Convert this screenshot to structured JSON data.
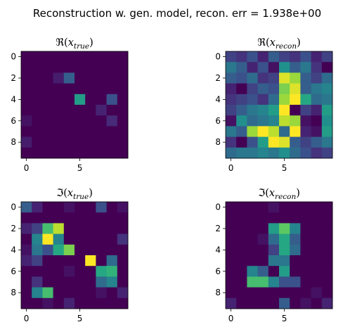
{
  "suptitle": "Reconstruction w. gen. model, recon. err = 1.938e+00",
  "chart_data": [
    {
      "type": "heatmap",
      "title": {
        "sym": "ℜ",
        "var": "x",
        "sub": "true"
      },
      "xticks": [
        0,
        5
      ],
      "yticks": [
        0,
        2,
        4,
        6,
        8
      ],
      "xlim": [
        -0.5,
        9.5
      ],
      "ylim": [
        9.5,
        -0.5
      ],
      "colormap": "viridis",
      "vmin": 0,
      "vmax": 1,
      "values": [
        [
          0.0,
          0.0,
          0.0,
          0.0,
          0.0,
          0.0,
          0.0,
          0.0,
          0.0,
          0.0
        ],
        [
          0.0,
          0.0,
          0.0,
          0.0,
          0.0,
          0.0,
          0.0,
          0.0,
          0.0,
          0.0
        ],
        [
          0.0,
          0.0,
          0.0,
          0.08,
          0.3,
          0.0,
          0.0,
          0.0,
          0.0,
          0.0
        ],
        [
          0.0,
          0.0,
          0.0,
          0.0,
          0.0,
          0.0,
          0.0,
          0.0,
          0.0,
          0.0
        ],
        [
          0.0,
          0.0,
          0.0,
          0.0,
          0.0,
          0.55,
          0.0,
          0.0,
          0.25,
          0.0
        ],
        [
          0.0,
          0.0,
          0.0,
          0.0,
          0.0,
          0.0,
          0.0,
          0.1,
          0.0,
          0.0
        ],
        [
          0.05,
          0.0,
          0.0,
          0.0,
          0.0,
          0.0,
          0.0,
          0.0,
          0.12,
          0.0
        ],
        [
          0.0,
          0.0,
          0.0,
          0.0,
          0.0,
          0.0,
          0.0,
          0.0,
          0.0,
          0.0
        ],
        [
          0.08,
          0.0,
          0.0,
          0.0,
          0.0,
          0.0,
          0.0,
          0.0,
          0.0,
          0.0
        ],
        [
          0.0,
          0.0,
          0.0,
          0.0,
          0.0,
          0.0,
          0.0,
          0.0,
          0.0,
          0.0
        ]
      ]
    },
    {
      "type": "heatmap",
      "title": {
        "sym": "ℜ",
        "var": "x",
        "sub": "recon"
      },
      "xticks": [
        0,
        5
      ],
      "yticks": [
        0,
        2,
        4,
        6,
        8
      ],
      "xlim": [
        -0.5,
        9.5
      ],
      "ylim": [
        9.5,
        -0.5
      ],
      "colormap": "viridis",
      "vmin": 0,
      "vmax": 1,
      "values": [
        [
          0.2,
          0.15,
          0.25,
          0.1,
          0.3,
          0.2,
          0.15,
          0.25,
          0.1,
          0.2
        ],
        [
          0.4,
          0.3,
          0.1,
          0.25,
          0.05,
          0.5,
          0.3,
          0.4,
          0.15,
          0.0
        ],
        [
          0.3,
          0.25,
          0.35,
          0.15,
          0.2,
          0.95,
          0.85,
          0.3,
          0.2,
          0.35
        ],
        [
          0.1,
          0.0,
          0.2,
          0.3,
          0.25,
          0.8,
          0.95,
          0.3,
          0.4,
          0.45
        ],
        [
          0.15,
          0.2,
          0.25,
          0.15,
          0.35,
          0.85,
          1.0,
          0.6,
          0.35,
          0.4
        ],
        [
          0.2,
          0.3,
          0.4,
          0.45,
          0.55,
          1.0,
          0.0,
          0.2,
          0.1,
          0.55
        ],
        [
          0.05,
          0.5,
          0.35,
          0.4,
          0.45,
          0.9,
          0.85,
          0.05,
          0.0,
          0.5
        ],
        [
          0.4,
          0.3,
          0.85,
          1.0,
          0.9,
          0.35,
          1.0,
          0.1,
          0.05,
          0.55
        ],
        [
          0.15,
          0.0,
          0.25,
          0.55,
          1.0,
          0.95,
          0.3,
          0.2,
          0.3,
          0.4
        ],
        [
          0.35,
          0.4,
          0.4,
          0.45,
          0.4,
          0.5,
          0.35,
          0.25,
          0.15,
          0.2
        ]
      ]
    },
    {
      "type": "heatmap",
      "title": {
        "sym": "ℑ",
        "var": "x",
        "sub": "true"
      },
      "xticks": [
        0,
        5
      ],
      "yticks": [
        0,
        2,
        4,
        6,
        8
      ],
      "xlim": [
        -0.5,
        9.5
      ],
      "ylim": [
        9.5,
        -0.5
      ],
      "colormap": "viridis",
      "vmin": 0,
      "vmax": 1,
      "values": [
        [
          0.3,
          0.1,
          0.0,
          0.0,
          0.05,
          0.0,
          0.0,
          0.25,
          0.0,
          0.05
        ],
        [
          0.0,
          0.0,
          0.0,
          0.0,
          0.0,
          0.0,
          0.0,
          0.0,
          0.0,
          0.0
        ],
        [
          0.1,
          0.2,
          0.7,
          0.9,
          0.0,
          0.0,
          0.0,
          0.0,
          0.0,
          0.0
        ],
        [
          0.0,
          0.45,
          1.0,
          0.45,
          0.0,
          0.0,
          0.0,
          0.0,
          0.0,
          0.15
        ],
        [
          0.05,
          0.4,
          0.25,
          0.6,
          0.8,
          0.0,
          0.0,
          0.0,
          0.0,
          0.0
        ],
        [
          0.1,
          0.2,
          0.0,
          0.0,
          0.0,
          0.0,
          1.0,
          0.0,
          0.35,
          0.0
        ],
        [
          0.0,
          0.0,
          0.0,
          0.0,
          0.05,
          0.0,
          0.0,
          0.6,
          0.65,
          0.0
        ],
        [
          0.0,
          0.15,
          0.0,
          0.0,
          0.0,
          0.0,
          0.0,
          0.35,
          0.45,
          0.0
        ],
        [
          0.0,
          0.45,
          0.7,
          0.0,
          0.0,
          0.0,
          0.0,
          0.05,
          0.0,
          0.1
        ],
        [
          0.0,
          0.0,
          0.05,
          0.0,
          0.1,
          0.0,
          0.0,
          0.0,
          0.0,
          0.0
        ]
      ]
    },
    {
      "type": "heatmap",
      "title": {
        "sym": "ℑ",
        "var": "x",
        "sub": "recon"
      },
      "xticks": [
        0,
        5
      ],
      "yticks": [
        0,
        2,
        4,
        6,
        8
      ],
      "xlim": [
        -0.5,
        9.5
      ],
      "ylim": [
        9.5,
        -0.5
      ],
      "colormap": "viridis",
      "vmin": 0,
      "vmax": 1,
      "values": [
        [
          0.0,
          0.0,
          0.0,
          0.0,
          0.05,
          0.0,
          0.0,
          0.0,
          0.0,
          0.0
        ],
        [
          0.0,
          0.0,
          0.0,
          0.0,
          0.0,
          0.0,
          0.0,
          0.0,
          0.0,
          0.0
        ],
        [
          0.0,
          0.0,
          0.0,
          0.0,
          0.55,
          0.75,
          0.45,
          0.0,
          0.0,
          0.0
        ],
        [
          0.0,
          0.0,
          0.0,
          0.05,
          0.35,
          0.6,
          0.3,
          0.0,
          0.0,
          0.0
        ],
        [
          0.0,
          0.0,
          0.0,
          0.0,
          0.2,
          0.6,
          0.35,
          0.0,
          0.0,
          0.0
        ],
        [
          0.0,
          0.0,
          0.0,
          0.0,
          0.4,
          0.4,
          0.0,
          0.0,
          0.0,
          0.0
        ],
        [
          0.0,
          0.0,
          0.45,
          0.3,
          0.0,
          0.55,
          0.0,
          0.0,
          0.0,
          0.0
        ],
        [
          0.0,
          0.0,
          0.7,
          0.7,
          0.45,
          0.25,
          0.25,
          0.0,
          0.0,
          0.0
        ],
        [
          0.0,
          0.0,
          0.0,
          0.0,
          0.0,
          0.0,
          0.0,
          0.0,
          0.05,
          0.0
        ],
        [
          0.1,
          0.0,
          0.0,
          0.0,
          0.0,
          0.3,
          0.0,
          0.05,
          0.0,
          0.1
        ]
      ]
    }
  ]
}
